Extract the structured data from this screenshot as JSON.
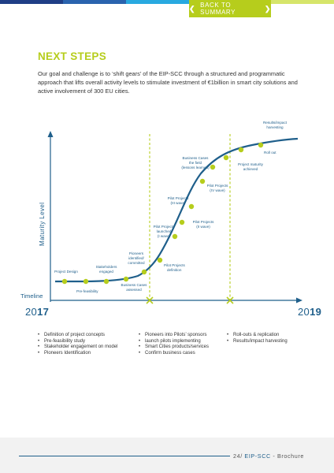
{
  "header": {
    "colors": [
      "#1f3e86",
      "#2a63ae",
      "#28a9e0",
      "#d6e56a"
    ],
    "back_label": "BACK TO SUMMARY"
  },
  "title": "NEXT STEPS",
  "intro": "Our goal and challenge is to ‘shift gears’ of the EIP-SCC through a structured and programmatic approach that lifts overall activity levels to stimulate investment of €1billion in smart city solutions and active involvement of 300 EU cities.",
  "chart": {
    "y_axis_label": "Maturity Level",
    "x_axis_label": "Timeline",
    "year_start_light": "20",
    "year_start_bold": "17",
    "year_end_light": "20",
    "year_end_bold": "19",
    "colors": {
      "curve": "#1f5f8b",
      "dots": "#b6cd1c",
      "markers": "#b6cd1c"
    },
    "labels": {
      "project_design": "Project Design",
      "pre_feasibility": "Pre-feasibility",
      "stakeholders_1": "Stakeholders",
      "stakeholders_2": "engaged",
      "business_cases_assessed_1": "Business Cases",
      "business_cases_assessed_2": "assessed",
      "pioneers_1": "Pioneers",
      "pioneers_2": "identified/",
      "pioneers_3": "committed",
      "pilot_def_1": "Pilot Projects",
      "pilot_def_2": "definition",
      "pilot_launched_1": "Pilot Projects",
      "pilot_launched_2": "launched",
      "pilot_launched_3": "(I wave)",
      "pilot_ii_1": "Pilot Projects",
      "pilot_ii_2": "(II wave)",
      "pilot_iii_1": "Pilot Projects",
      "pilot_iii_2": "(III wave)",
      "pilot_iv_1": "Pilot Projects",
      "pilot_iv_2": "(IV wave)",
      "bc_field_1": "Business Cases",
      "bc_field_2": "the field",
      "bc_field_3": "(lessons learned)",
      "maturity_1": "Project maturity",
      "maturity_2": "achieved",
      "roll_out": "Roll out",
      "results_1": "Results/impact",
      "results_2": "harvesting"
    }
  },
  "columns": [
    [
      "Definition of project concepts",
      "Pre-feasibility study",
      "Stakeholder engagement on model",
      "Pioneers Identification"
    ],
    [
      "Pioneers into Pilots’ sponsors",
      "launch pilots implementing",
      "Smart Cities products/services",
      "Confirm business cases"
    ],
    [
      "Roll-outs & replication",
      "Results/impact harvesting"
    ]
  ],
  "footer": {
    "page": "24",
    "sep": "/",
    "brand": "EIP-SCC",
    "dash": "-",
    "doc": "Brochure"
  }
}
